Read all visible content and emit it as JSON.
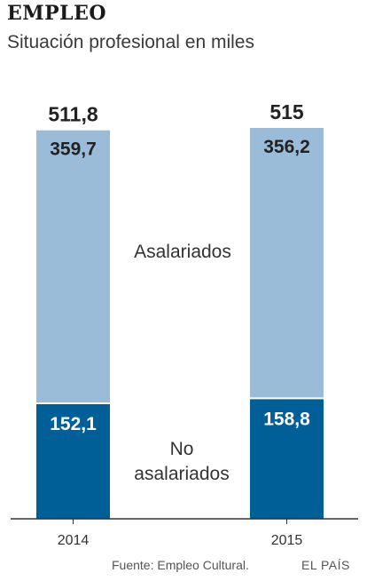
{
  "header": {
    "title": "EMPLEO",
    "subtitle": "Situación profesional en miles"
  },
  "footer": {
    "source": "Fuente: Empleo Cultural.",
    "brand": "EL PAÍS"
  },
  "colors": {
    "asalariados": "#9bbcd8",
    "no_asalariados": "#005f96",
    "axis": "#333333"
  },
  "chart_data": {
    "type": "bar",
    "stacked": true,
    "categories": [
      "2014",
      "2015"
    ],
    "totals": [
      "511,8",
      "515"
    ],
    "total_values": [
      511.8,
      515
    ],
    "series": [
      {
        "name": "No asalariados",
        "values": [
          152.1,
          158.8
        ],
        "labels": [
          "152,1",
          "158,8"
        ]
      },
      {
        "name": "Asalariados",
        "values": [
          359.7,
          356.2
        ],
        "labels": [
          "359,7",
          "356,2"
        ]
      }
    ],
    "series_labels": {
      "asalariados": "Asalariados",
      "no_asalariados_line1": "No",
      "no_asalariados_line2": "asalariados"
    },
    "ylim": [
      0,
      515
    ],
    "grid": false,
    "legend": "inline"
  }
}
